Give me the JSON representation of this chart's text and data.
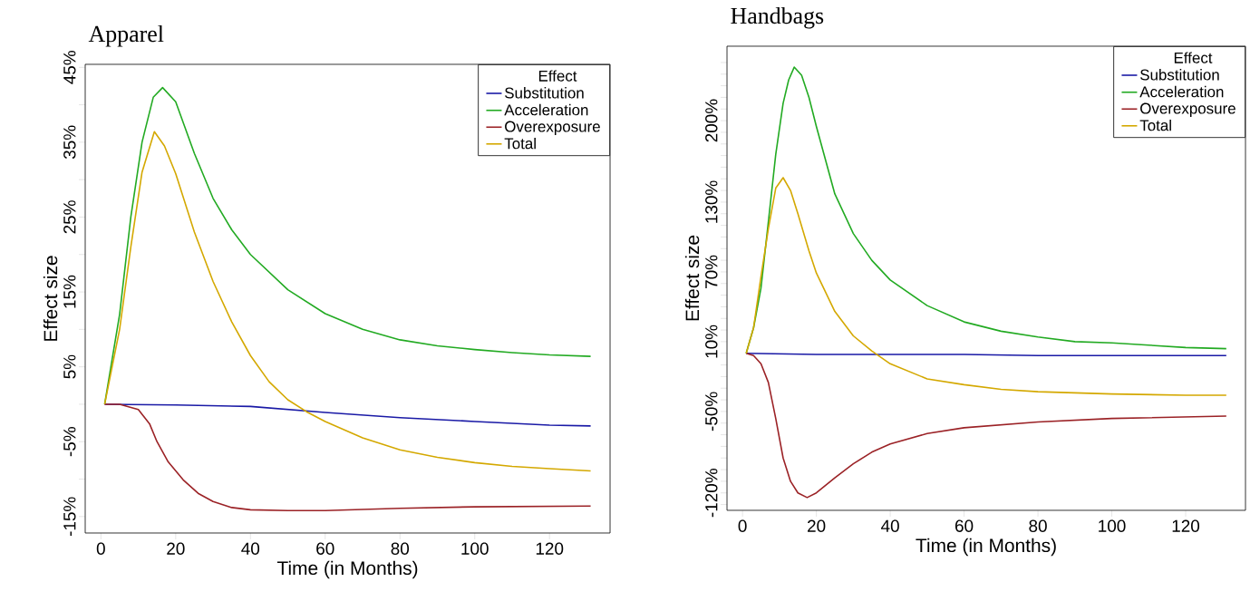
{
  "chart_data": [
    {
      "type": "line",
      "title": "Apparel",
      "xlabel": "Time (in Months)",
      "ylabel": "Effect size",
      "legend_title": "Effect",
      "legend": "top right",
      "xlim": [
        -4.2,
        136.2
      ],
      "ylim": [
        -17.2,
        45.4
      ],
      "xticks": [
        0,
        20,
        40,
        60,
        80,
        100,
        120
      ],
      "yticks": [
        {
          "value": -15,
          "label": "-15%"
        },
        {
          "value": -10,
          "label": null
        },
        {
          "value": -5,
          "label": "-5%"
        },
        {
          "value": 0,
          "label": null
        },
        {
          "value": 5,
          "label": "5%"
        },
        {
          "value": 10,
          "label": null
        },
        {
          "value": 15,
          "label": "15%"
        },
        {
          "value": 20,
          "label": null
        },
        {
          "value": 25,
          "label": "25%"
        },
        {
          "value": 30,
          "label": null
        },
        {
          "value": 35,
          "label": "35%"
        },
        {
          "value": 40,
          "label": null
        },
        {
          "value": 45,
          "label": "45%"
        }
      ],
      "series": [
        {
          "name": "Substitution",
          "color": "#1a1aa6",
          "x": [
            1,
            20,
            40,
            60,
            80,
            100,
            120,
            131
          ],
          "values": [
            0,
            -0.1,
            -0.3,
            -1.1,
            -1.8,
            -2.3,
            -2.8,
            -2.9
          ]
        },
        {
          "name": "Acceleration",
          "color": "#22aa22",
          "x": [
            1,
            5,
            8,
            11,
            14,
            16.5,
            20,
            25,
            30,
            35,
            40,
            50,
            60,
            70,
            80,
            90,
            100,
            110,
            120,
            131
          ],
          "values": [
            0,
            12,
            25,
            35,
            41,
            42.3,
            40.4,
            33.5,
            27.5,
            23.3,
            20,
            15.3,
            12.1,
            10,
            8.6,
            7.8,
            7.3,
            6.9,
            6.6,
            6.4
          ]
        },
        {
          "name": "Overexposure",
          "color": "#9b2226",
          "x": [
            1,
            5,
            10,
            13,
            15,
            18,
            22,
            26,
            30,
            35,
            40,
            50,
            60,
            80,
            100,
            131
          ],
          "values": [
            0,
            0,
            -0.7,
            -2.6,
            -5,
            -7.7,
            -10.1,
            -11.9,
            -13,
            -13.8,
            -14.1,
            -14.2,
            -14.2,
            -13.9,
            -13.7,
            -13.6
          ]
        },
        {
          "name": "Total",
          "color": "#d4a800",
          "x": [
            1,
            5,
            8,
            11,
            14.3,
            17,
            20,
            25,
            30,
            35,
            40,
            45,
            50,
            55,
            60,
            70,
            80,
            90,
            100,
            110,
            120,
            131
          ],
          "values": [
            0,
            10,
            21,
            31,
            36.4,
            34.5,
            30.8,
            23,
            16.4,
            11,
            6.5,
            3,
            0.6,
            -1,
            -2.3,
            -4.5,
            -6.1,
            -7.1,
            -7.8,
            -8.3,
            -8.6,
            -8.9
          ]
        }
      ]
    },
    {
      "type": "line",
      "title": "Handbags",
      "xlabel": "Time (in Months)",
      "ylabel": "Effect size",
      "legend_title": "Effect",
      "legend": "top right",
      "xlim": [
        -4.2,
        136.2
      ],
      "ylim": [
        -135,
        264
      ],
      "xticks": [
        0,
        20,
        40,
        60,
        80,
        100,
        120
      ],
      "yticks": [
        {
          "value": -130,
          "label": null
        },
        {
          "value": -120,
          "label": "-120%"
        },
        {
          "value": -110,
          "label": null
        },
        {
          "value": -100,
          "label": null
        },
        {
          "value": -90,
          "label": null
        },
        {
          "value": -80,
          "label": null
        },
        {
          "value": -70,
          "label": null
        },
        {
          "value": -60,
          "label": null
        },
        {
          "value": -50,
          "label": "-50%"
        },
        {
          "value": -40,
          "label": null
        },
        {
          "value": -30,
          "label": null
        },
        {
          "value": -20,
          "label": null
        },
        {
          "value": -10,
          "label": null
        },
        {
          "value": 0,
          "label": null
        },
        {
          "value": 10,
          "label": "10%"
        },
        {
          "value": 20,
          "label": null
        },
        {
          "value": 30,
          "label": null
        },
        {
          "value": 40,
          "label": null
        },
        {
          "value": 50,
          "label": null
        },
        {
          "value": 60,
          "label": null
        },
        {
          "value": 70,
          "label": "70%"
        },
        {
          "value": 80,
          "label": null
        },
        {
          "value": 90,
          "label": null
        },
        {
          "value": 100,
          "label": null
        },
        {
          "value": 110,
          "label": null
        },
        {
          "value": 120,
          "label": null
        },
        {
          "value": 130,
          "label": "130%"
        },
        {
          "value": 140,
          "label": null
        },
        {
          "value": 150,
          "label": null
        },
        {
          "value": 160,
          "label": null
        },
        {
          "value": 170,
          "label": null
        },
        {
          "value": 180,
          "label": null
        },
        {
          "value": 190,
          "label": null
        },
        {
          "value": 200,
          "label": "200%"
        },
        {
          "value": 210,
          "label": null
        },
        {
          "value": 220,
          "label": null
        },
        {
          "value": 230,
          "label": null
        },
        {
          "value": 240,
          "label": null
        },
        {
          "value": 250,
          "label": null
        }
      ],
      "series": [
        {
          "name": "Substitution",
          "color": "#1a1aa6",
          "x": [
            1,
            20,
            40,
            60,
            80,
            100,
            120,
            131
          ],
          "values": [
            0,
            -1,
            -1,
            -1,
            -2,
            -2,
            -2,
            -2
          ]
        },
        {
          "name": "Acceleration",
          "color": "#22aa22",
          "x": [
            1,
            3,
            5,
            7,
            9,
            11,
            12.5,
            14,
            16,
            18,
            20,
            25,
            30,
            35,
            40,
            50,
            60,
            70,
            80,
            90,
            100,
            110,
            120,
            131
          ],
          "values": [
            0,
            22,
            56,
            113,
            171,
            215,
            235,
            246,
            239,
            220,
            195,
            137,
            103,
            80,
            63,
            41,
            27,
            19,
            14,
            10,
            9,
            7,
            5,
            4
          ]
        },
        {
          "name": "Overexposure",
          "color": "#9b2226",
          "x": [
            1,
            3,
            5,
            7,
            9,
            11,
            13,
            15,
            17.5,
            20,
            25,
            30,
            35,
            40,
            50,
            60,
            80,
            100,
            131
          ],
          "values": [
            0,
            -2,
            -9,
            -25,
            -56,
            -90,
            -110,
            -120,
            -124,
            -120,
            -107,
            -95,
            -85,
            -78,
            -69,
            -64,
            -59,
            -56,
            -54
          ]
        },
        {
          "name": "Total",
          "color": "#d4a800",
          "x": [
            1,
            3,
            5,
            7,
            9,
            11,
            13,
            15,
            18,
            20,
            25,
            30,
            35,
            40,
            50,
            60,
            70,
            80,
            100,
            120,
            131
          ],
          "values": [
            0,
            22,
            66,
            107,
            142,
            151,
            140,
            120,
            88,
            69,
            36,
            15,
            2,
            -9,
            -22,
            -27,
            -31,
            -33,
            -35,
            -36,
            -36
          ]
        }
      ]
    }
  ]
}
